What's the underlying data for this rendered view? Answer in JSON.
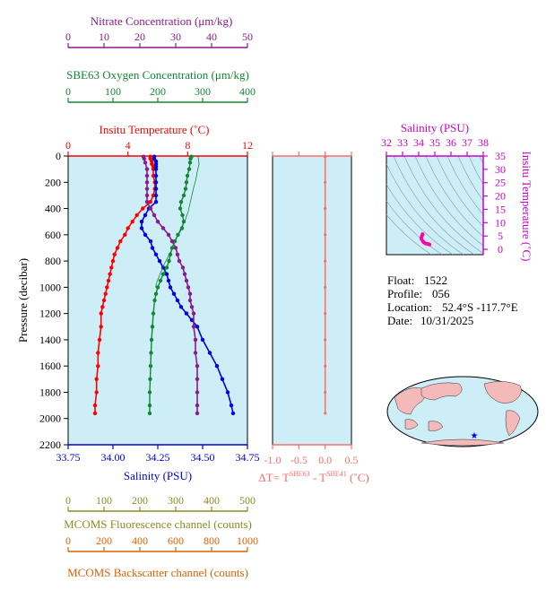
{
  "info": {
    "float_label": "Float:",
    "float_value": "1522",
    "profile_label": "Profile:",
    "profile_value": "056",
    "location_label": "Location:",
    "location_value": "52.4°S  -117.7°E",
    "date_label": "Date:",
    "date_value": "10/31/2025"
  },
  "colors": {
    "panel_bg": "#cdeef7",
    "temperature": "#ff0000",
    "salinity": "#0000dd",
    "oxygen": "#118833",
    "nitrate": "#8b1a8b",
    "fluorescence": "#8b8b22",
    "backscatter": "#e06000",
    "delta_t": "#ff6b6b",
    "ts": "#ff00aa"
  },
  "chart_data": [
    {
      "type": "line",
      "name": "main-profile",
      "ylabel": "Pressure (decibar)",
      "ylim": [
        0,
        2200
      ],
      "yticks": [
        0,
        200,
        400,
        600,
        800,
        1000,
        1200,
        1400,
        1600,
        1800,
        2000,
        2200
      ],
      "axes": {
        "nitrate": {
          "label": "Nitrate Concentration (μm/kg)",
          "lim": [
            0,
            50
          ],
          "ticks": [
            0,
            10,
            20,
            30,
            40,
            50
          ]
        },
        "oxygen": {
          "label": "SBE63 Oxygen Concentration (μm/kg)",
          "lim": [
            0,
            400
          ],
          "ticks": [
            0,
            100,
            200,
            300,
            400
          ]
        },
        "temperature": {
          "label": "Insitu Temperature (˚C)",
          "lim": [
            0,
            12
          ],
          "ticks": [
            0,
            4,
            8,
            12
          ]
        },
        "salinity": {
          "label": "Salinity (PSU)",
          "lim": [
            33.75,
            34.75
          ],
          "ticks": [
            "33.75",
            "34.00",
            "34.25",
            "34.50",
            "34.75"
          ]
        },
        "fluorescence": {
          "label": "MCOMS Fluorescence channel (counts)",
          "lim": [
            0,
            500
          ],
          "ticks": [
            0,
            100,
            200,
            300,
            400,
            500
          ]
        },
        "backscatter": {
          "label": "MCOMS Backscatter channel (counts)",
          "lim": [
            0,
            1000
          ],
          "ticks": [
            0,
            200,
            400,
            600,
            800,
            1000
          ]
        }
      },
      "series": [
        {
          "key": "temperature",
          "points": [
            [
              5.5,
              5
            ],
            [
              5.5,
              20
            ],
            [
              5.6,
              40
            ],
            [
              5.6,
              60
            ],
            [
              5.7,
              80
            ],
            [
              5.7,
              100
            ],
            [
              5.7,
              150
            ],
            [
              5.8,
              200
            ],
            [
              5.8,
              250
            ],
            [
              5.7,
              300
            ],
            [
              5.5,
              350
            ],
            [
              5.0,
              400
            ],
            [
              4.6,
              450
            ],
            [
              4.3,
              500
            ],
            [
              4.0,
              550
            ],
            [
              3.8,
              600
            ],
            [
              3.5,
              650
            ],
            [
              3.3,
              700
            ],
            [
              3.1,
              750
            ],
            [
              3.0,
              800
            ],
            [
              2.9,
              850
            ],
            [
              2.8,
              900
            ],
            [
              2.7,
              950
            ],
            [
              2.6,
              1000
            ],
            [
              2.5,
              1050
            ],
            [
              2.4,
              1100
            ],
            [
              2.3,
              1150
            ],
            [
              2.2,
              1200
            ],
            [
              2.2,
              1300
            ],
            [
              2.1,
              1400
            ],
            [
              2.0,
              1500
            ],
            [
              2.0,
              1600
            ],
            [
              1.9,
              1700
            ],
            [
              1.9,
              1800
            ],
            [
              1.8,
              1900
            ],
            [
              1.8,
              1960
            ]
          ]
        },
        {
          "key": "salinity",
          "points": [
            [
              34.23,
              5
            ],
            [
              34.23,
              20
            ],
            [
              34.24,
              40
            ],
            [
              34.24,
              60
            ],
            [
              34.24,
              80
            ],
            [
              34.24,
              100
            ],
            [
              34.24,
              150
            ],
            [
              34.24,
              200
            ],
            [
              34.24,
              250
            ],
            [
              34.24,
              300
            ],
            [
              34.24,
              350
            ],
            [
              34.2,
              400
            ],
            [
              34.18,
              450
            ],
            [
              34.16,
              500
            ],
            [
              34.16,
              550
            ],
            [
              34.18,
              600
            ],
            [
              34.21,
              650
            ],
            [
              34.22,
              700
            ],
            [
              34.24,
              750
            ],
            [
              34.26,
              800
            ],
            [
              34.28,
              850
            ],
            [
              34.3,
              900
            ],
            [
              34.31,
              950
            ],
            [
              34.32,
              1000
            ],
            [
              34.34,
              1050
            ],
            [
              34.36,
              1100
            ],
            [
              34.38,
              1150
            ],
            [
              34.41,
              1200
            ],
            [
              34.44,
              1250
            ],
            [
              34.47,
              1300
            ],
            [
              34.5,
              1400
            ],
            [
              34.54,
              1500
            ],
            [
              34.58,
              1600
            ],
            [
              34.61,
              1700
            ],
            [
              34.64,
              1800
            ],
            [
              34.66,
              1900
            ],
            [
              34.67,
              1960
            ]
          ]
        },
        {
          "key": "oxygen",
          "points": [
            [
              275,
              5
            ],
            [
              273,
              20
            ],
            [
              272,
              50
            ],
            [
              270,
              100
            ],
            [
              266,
              150
            ],
            [
              264,
              200
            ],
            [
              262,
              250
            ],
            [
              258,
              300
            ],
            [
              252,
              350
            ],
            [
              250,
              400
            ],
            [
              255,
              450
            ],
            [
              258,
              500
            ],
            [
              254,
              550
            ],
            [
              245,
              600
            ],
            [
              238,
              650
            ],
            [
              232,
              700
            ],
            [
              228,
              750
            ],
            [
              225,
              800
            ],
            [
              220,
              850
            ],
            [
              212,
              900
            ],
            [
              206,
              950
            ],
            [
              200,
              1000
            ],
            [
              196,
              1050
            ],
            [
              193,
              1100
            ],
            [
              190,
              1200
            ],
            [
              188,
              1300
            ],
            [
              186,
              1400
            ],
            [
              185,
              1500
            ],
            [
              184,
              1600
            ],
            [
              183,
              1700
            ],
            [
              182,
              1800
            ],
            [
              182,
              1900
            ],
            [
              182,
              1960
            ]
          ]
        },
        {
          "key": "nitrate",
          "points": [
            [
              21,
              5
            ],
            [
              21.2,
              20
            ],
            [
              21.5,
              50
            ],
            [
              22,
              100
            ],
            [
              22,
              150
            ],
            [
              22,
              200
            ],
            [
              22,
              250
            ],
            [
              22,
              300
            ],
            [
              22,
              350
            ],
            [
              23,
              400
            ],
            [
              24,
              450
            ],
            [
              25,
              500
            ],
            [
              26.5,
              550
            ],
            [
              28,
              600
            ],
            [
              29,
              650
            ],
            [
              30,
              700
            ],
            [
              30.5,
              750
            ],
            [
              31,
              800
            ],
            [
              32,
              850
            ],
            [
              32.5,
              900
            ],
            [
              33,
              950
            ],
            [
              33.5,
              1000
            ],
            [
              34,
              1050
            ],
            [
              34,
              1100
            ],
            [
              34.5,
              1150
            ],
            [
              35,
              1200
            ],
            [
              35,
              1300
            ],
            [
              35.5,
              1400
            ],
            [
              35.5,
              1500
            ],
            [
              36,
              1600
            ],
            [
              36,
              1700
            ],
            [
              36,
              1800
            ],
            [
              36,
              1900
            ],
            [
              36,
              1960
            ]
          ]
        }
      ]
    },
    {
      "type": "line",
      "name": "delta-t",
      "xlabel": "ΔT= T",
      "xlabel_sup1": "SBE63",
      "xlabel_mid": " - T",
      "xlabel_sup2": "SBE41",
      "xlabel_unit": " (˚C)",
      "xlim": [
        -1.0,
        0.5
      ],
      "xticks": [
        "-1.0",
        "-0.5",
        "0.0",
        "0.5"
      ],
      "series": [
        {
          "key": "delta_t",
          "points": [
            [
              0.0,
              5
            ],
            [
              0.0,
              200
            ],
            [
              0.0,
              400
            ],
            [
              0.0,
              600
            ],
            [
              0.0,
              800
            ],
            [
              0.0,
              1000
            ],
            [
              0.0,
              1200
            ],
            [
              0.0,
              1400
            ],
            [
              0.0,
              1600
            ],
            [
              0.0,
              1800
            ],
            [
              0.0,
              1960
            ]
          ]
        }
      ]
    },
    {
      "type": "scatter",
      "name": "ts-diagram",
      "xlabel": "Salinity (PSU)",
      "ylabel": "Insitu Temperature (˚C)",
      "xlim": [
        32,
        38
      ],
      "ylim": [
        -2,
        35
      ],
      "xticks": [
        32,
        33,
        34,
        35,
        36,
        37,
        38
      ],
      "yticks": [
        0,
        5,
        10,
        15,
        20,
        25,
        30,
        35
      ],
      "series": [
        {
          "key": "ts",
          "points": [
            [
              34.24,
              5.5
            ],
            [
              34.24,
              5.7
            ],
            [
              34.2,
              5.0
            ],
            [
              34.16,
              4.3
            ],
            [
              34.18,
              3.8
            ],
            [
              34.26,
              3.0
            ],
            [
              34.32,
              2.6
            ],
            [
              34.41,
              2.2
            ],
            [
              34.5,
              2.1
            ],
            [
              34.58,
              2.0
            ],
            [
              34.64,
              1.9
            ],
            [
              34.67,
              1.8
            ]
          ]
        }
      ]
    }
  ]
}
